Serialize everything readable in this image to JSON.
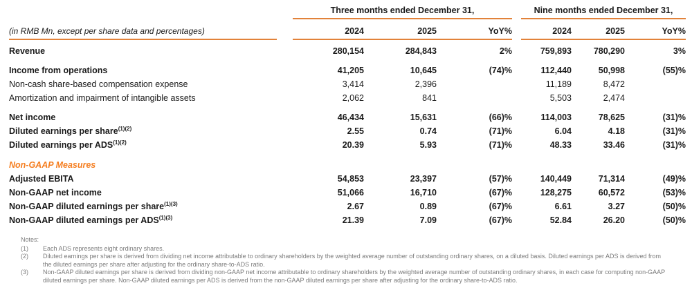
{
  "colors": {
    "rule_orange": "#E2823A",
    "section_orange": "#F57E20",
    "notes_gray": "#7b7b7b",
    "text_black": "#1a1a1a"
  },
  "table": {
    "unit_label": "(in RMB Mn, except per share data and percentages)",
    "period_groups": [
      {
        "title": "Three months ended December 31,",
        "columns": [
          "2024",
          "2025",
          "YoY%"
        ]
      },
      {
        "title": "Nine months ended December 31,",
        "columns": [
          "2024",
          "2025",
          "YoY%"
        ]
      }
    ],
    "section_header": "Non-GAAP Measures",
    "rows": [
      {
        "label": "Revenue",
        "sup": "",
        "values": [
          "280,154",
          "284,843",
          "2%",
          "759,893",
          "780,290",
          "3%"
        ]
      },
      {
        "label": "Income from operations",
        "sup": "",
        "values": [
          "41,205",
          "10,645",
          "(74)%",
          "112,440",
          "50,998",
          "(55)%"
        ]
      },
      {
        "label": "Non-cash share-based compensation expense",
        "sup": "",
        "values": [
          "3,414",
          "2,396",
          "",
          "11,189",
          "8,472",
          ""
        ]
      },
      {
        "label": "Amortization and impairment of intangible assets",
        "sup": "",
        "values": [
          "2,062",
          "841",
          "",
          "5,503",
          "2,474",
          ""
        ]
      },
      {
        "label": "Net income",
        "sup": "",
        "values": [
          "46,434",
          "15,631",
          "(66)%",
          "114,003",
          "78,625",
          "(31)%"
        ]
      },
      {
        "label": "Diluted earnings per share",
        "sup": "(1)(2)",
        "values": [
          "2.55",
          "0.74",
          "(71)%",
          "6.04",
          "4.18",
          "(31)%"
        ]
      },
      {
        "label": "Diluted earnings per ADS",
        "sup": "(1)(2)",
        "values": [
          "20.39",
          "5.93",
          "(71)%",
          "48.33",
          "33.46",
          "(31)%"
        ]
      },
      {
        "label": "Adjusted EBITA",
        "sup": "",
        "values": [
          "54,853",
          "23,397",
          "(57)%",
          "140,449",
          "71,314",
          "(49)%"
        ]
      },
      {
        "label": "Non-GAAP net income",
        "sup": "",
        "values": [
          "51,066",
          "16,710",
          "(67)%",
          "128,275",
          "60,572",
          "(53)%"
        ]
      },
      {
        "label": "Non-GAAP diluted earnings per share",
        "sup": "(1)(3)",
        "values": [
          "2.67",
          "0.89",
          "(67)%",
          "6.61",
          "3.27",
          "(50)%"
        ]
      },
      {
        "label": "Non-GAAP diluted earnings per ADS",
        "sup": "(1)(3)",
        "values": [
          "21.39",
          "7.09",
          "(67)%",
          "52.84",
          "26.20",
          "(50)%"
        ]
      }
    ]
  },
  "notes": {
    "title": "Notes:",
    "items": [
      {
        "num": "(1)",
        "text": "Each ADS represents eight ordinary shares."
      },
      {
        "num": "(2)",
        "text": "Diluted earnings per share is derived from dividing net income attributable to ordinary shareholders by the weighted average number of outstanding ordinary shares, on a diluted basis. Diluted earnings per ADS is derived from the diluted earnings per share after adjusting for the ordinary share-to-ADS ratio."
      },
      {
        "num": "(3)",
        "text": "Non-GAAP diluted earnings per share is derived from dividing non-GAAP net income attributable to ordinary shareholders by the weighted average number of outstanding ordinary shares, in each case for computing non-GAAP diluted earnings per share. Non-GAAP diluted earnings per ADS is derived from the non-GAAP diluted earnings per share after adjusting for the ordinary share-to-ADS ratio."
      }
    ]
  }
}
